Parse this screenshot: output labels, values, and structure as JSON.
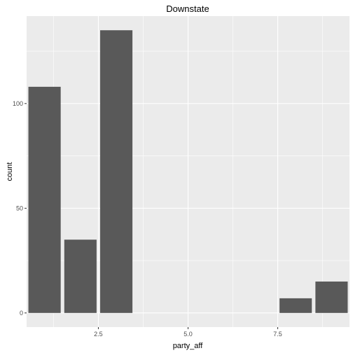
{
  "chart_data": {
    "type": "bar",
    "title": "Downstate",
    "xlabel": "party_aff",
    "ylabel": "count",
    "x": [
      1,
      2,
      3,
      8,
      9
    ],
    "values": [
      108,
      35,
      135,
      7,
      15
    ],
    "xlim": [
      0.5,
      9.5
    ],
    "ylim": [
      -6.75,
      141.75
    ],
    "x_ticks": [
      2.5,
      5.0,
      7.5
    ],
    "x_tick_labels": [
      "2.5",
      "5.0",
      "7.5"
    ],
    "y_ticks": [
      0,
      50,
      100
    ],
    "y_tick_labels": [
      "0",
      "50",
      "100"
    ],
    "bar_width": 0.9,
    "grid": true,
    "colors": {
      "panel": "#ebebeb",
      "grid_major": "#ffffff",
      "bar": "#595959",
      "tick": "#333333"
    }
  }
}
